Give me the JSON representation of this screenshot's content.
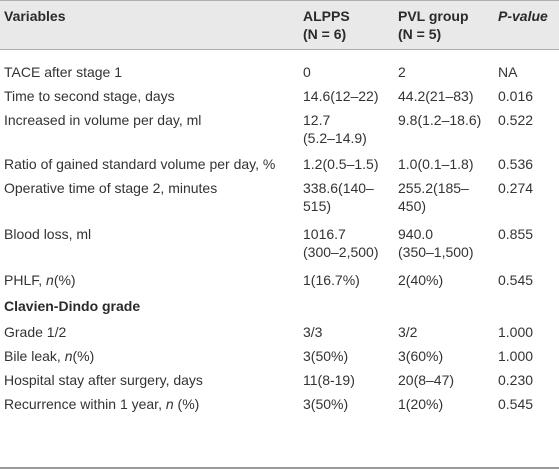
{
  "headers": {
    "variables": "Variables",
    "alpps_name": "ALPPS",
    "alpps_n": "(N = 6)",
    "pvl_name": "PVL group",
    "pvl_n": "(N = 5)",
    "pvalue": "P-value"
  },
  "rows": [
    {
      "label": "TACE after stage 1",
      "alpps": "0",
      "alpps2": "",
      "pvl": "2",
      "pvl2": "",
      "p": "NA"
    },
    {
      "label": "Time to second stage, days",
      "alpps": "14.6(12–22)",
      "alpps2": "",
      "pvl": "44.2(21–83)",
      "pvl2": "",
      "p": "0.016"
    },
    {
      "label": "Increased in volume per day, ml",
      "alpps": "12.7",
      "alpps2": "(5.2–14.9)",
      "pvl": "9.8(1.2–18.6)",
      "pvl2": "",
      "p": "0.522"
    },
    {
      "label": "Ratio of gained standard volume per day, %",
      "alpps": "1.2(0.5–1.5)",
      "alpps2": "",
      "pvl": "1.0(0.1–1.8)",
      "pvl2": "",
      "p": "0.536"
    },
    {
      "label": "Operative time of stage 2, minutes",
      "alpps": "338.6(140–",
      "alpps2": "515)",
      "pvl": "255.2(185–",
      "pvl2": "450)",
      "p": "0.274"
    },
    {
      "label": "Blood loss, ml",
      "alpps": "1016.7",
      "alpps2": "(300–2,500)",
      "pvl": "940.0",
      "pvl2": "(350–1,500)",
      "p": "0.855"
    },
    {
      "label_pre": "PHLF, ",
      "label_n": "n",
      "label_post": "(%)",
      "alpps": "1(16.7%)",
      "pvl": "2(40%)",
      "p": "0.545"
    },
    {
      "section": "Clavien-Dindo grade"
    },
    {
      "label": "Grade 1/2",
      "alpps": "3/3",
      "pvl": "3/2",
      "p": "1.000"
    },
    {
      "label_pre": "Bile leak, ",
      "label_n": "n",
      "label_post": "(%)",
      "alpps": "3(50%)",
      "pvl": "3(60%)",
      "p": "1.000"
    },
    {
      "label": "Hospital stay after surgery, days",
      "alpps": "11(8-19)",
      "pvl": "20(8–47)",
      "p": "0.230"
    },
    {
      "label_pre": "Recurrence within 1 year, ",
      "label_n": "n",
      "label_post": " (%)",
      "alpps": "3(50%)",
      "pvl": "1(20%)",
      "p": "0.545"
    }
  ]
}
